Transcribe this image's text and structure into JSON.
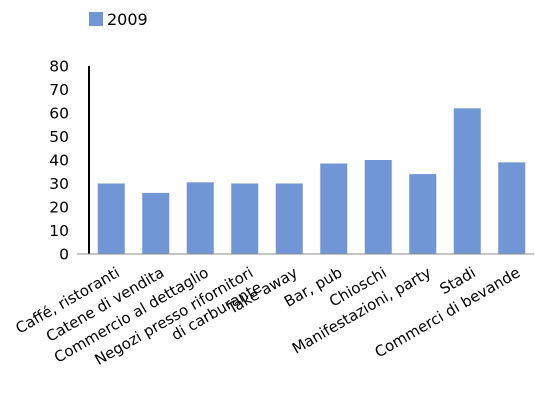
{
  "chart_data": {
    "type": "bar",
    "categories": [
      "Caffé, ristoranti",
      "Catene di vendita",
      "Commercio al dettaglio",
      "Negozi presso rifornitori di carburante",
      "Take away",
      "Bar, pub",
      "Chioschi",
      "Manifestazioni, party",
      "Stadi",
      "Commerci di bevande"
    ],
    "category_label_lines": [
      [
        "Caffé, ristoranti"
      ],
      [
        "Catene di vendita"
      ],
      [
        "Commercio al dettaglio"
      ],
      [
        "Negozi presso rifornitori",
        "di carburante"
      ],
      [
        "Take away"
      ],
      [
        "Bar, pub"
      ],
      [
        "Chioschi"
      ],
      [
        "Manifestazioni, party"
      ],
      [
        "Stadi"
      ],
      [
        "Commerci di bevande"
      ]
    ],
    "series": [
      {
        "name": "2009",
        "color": "#7196d6",
        "values": [
          30,
          26,
          30.5,
          30,
          30,
          38.5,
          40,
          34,
          62,
          39
        ]
      }
    ],
    "ylim": [
      0,
      80
    ],
    "yticks": [
      0,
      10,
      20,
      30,
      40,
      50,
      60,
      70,
      80
    ],
    "grid": false,
    "legend_position": "top-left",
    "title": "",
    "xlabel": "",
    "ylabel": ""
  }
}
